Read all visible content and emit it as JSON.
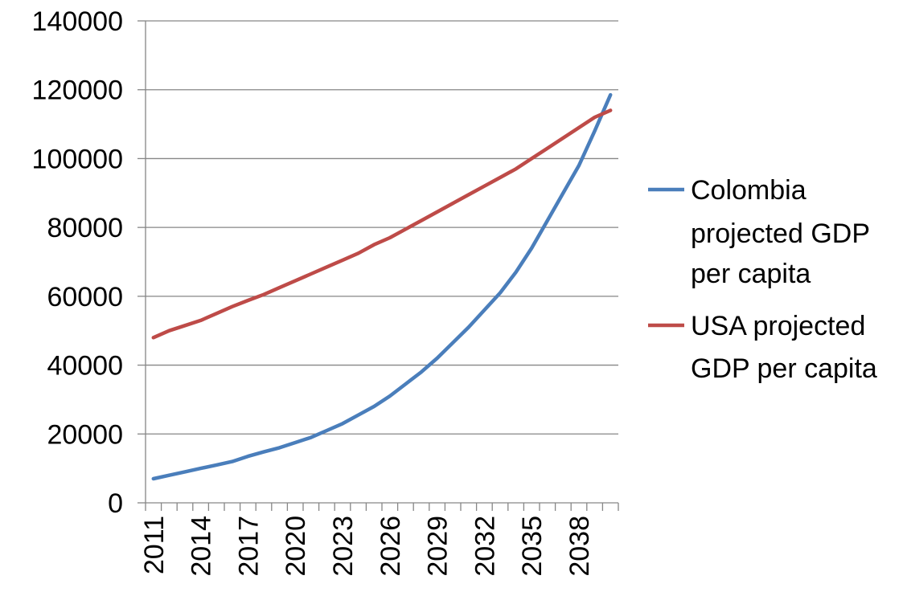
{
  "chart_data": {
    "type": "line",
    "x": [
      2011,
      2012,
      2013,
      2014,
      2015,
      2016,
      2017,
      2018,
      2019,
      2020,
      2021,
      2022,
      2023,
      2024,
      2025,
      2026,
      2027,
      2028,
      2029,
      2030,
      2031,
      2032,
      2033,
      2034,
      2035,
      2036,
      2037,
      2038,
      2039,
      2040
    ],
    "x_tick_labels": [
      "2011",
      "2014",
      "2017",
      "2020",
      "2023",
      "2026",
      "2029",
      "2032",
      "2035",
      "2038"
    ],
    "y_tick_labels": [
      "0",
      "20000",
      "40000",
      "60000",
      "80000",
      "100000",
      "120000",
      "140000"
    ],
    "ylim": [
      0,
      140000
    ],
    "grid": "horizontal",
    "legend_position": "right",
    "series": [
      {
        "name": "Colombia projected GDP per capita",
        "legend_lines": [
          "Colombia",
          "projected GDP",
          "per capita"
        ],
        "color": "#4a7ebb",
        "values": [
          7000,
          8000,
          9000,
          10000,
          11000,
          12000,
          13500,
          14800,
          16000,
          17500,
          19000,
          21000,
          23000,
          25500,
          28000,
          31000,
          34500,
          38000,
          42000,
          46500,
          51000,
          56000,
          61000,
          67000,
          74000,
          82000,
          90000,
          98000,
          108000,
          118500
        ]
      },
      {
        "name": "USA projected GDP per capita",
        "legend_lines": [
          "USA projected",
          "GDP per capita"
        ],
        "color": "#be4b48",
        "values": [
          48000,
          50000,
          51500,
          53000,
          55000,
          57000,
          58800,
          60500,
          62500,
          64500,
          66500,
          68500,
          70500,
          72500,
          75000,
          77000,
          79500,
          82000,
          84500,
          87000,
          89500,
          92000,
          94500,
          97000,
          100000,
          103000,
          106000,
          109000,
          112000,
          114000
        ]
      }
    ]
  }
}
